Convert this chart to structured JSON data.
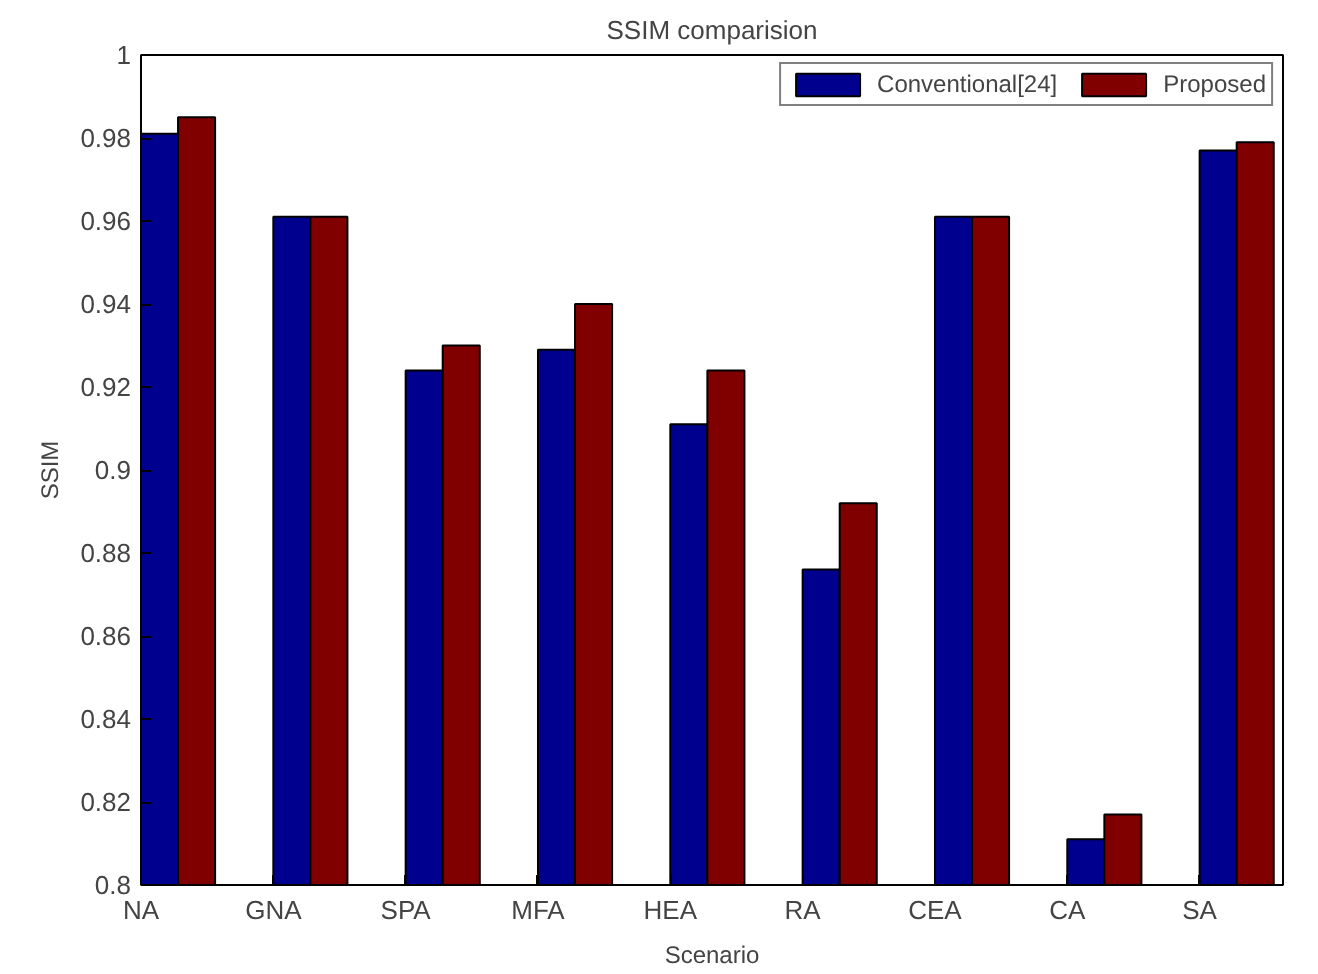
{
  "chart_data": {
    "type": "bar",
    "title": "SSIM comparision",
    "xlabel": "Scenario",
    "ylabel": "SSIM",
    "categories": [
      "NA",
      "GNA",
      "SPA",
      "MFA",
      "HEA",
      "RA",
      "CEA",
      "CA",
      "SA"
    ],
    "series": [
      {
        "name": "Conventional[24]",
        "color": "#00008f",
        "values": [
          0.981,
          0.961,
          0.924,
          0.929,
          0.911,
          0.876,
          0.961,
          0.811,
          0.977
        ]
      },
      {
        "name": "Proposed",
        "color": "#800000",
        "values": [
          0.985,
          0.961,
          0.93,
          0.94,
          0.924,
          0.892,
          0.961,
          0.817,
          0.979
        ]
      }
    ],
    "ylim": [
      0.8,
      1
    ],
    "yticks": [
      0.8,
      0.82,
      0.84,
      0.86,
      0.88,
      0.9,
      0.92,
      0.94,
      0.96,
      0.98,
      1
    ],
    "grid": false,
    "legend": "top right"
  }
}
